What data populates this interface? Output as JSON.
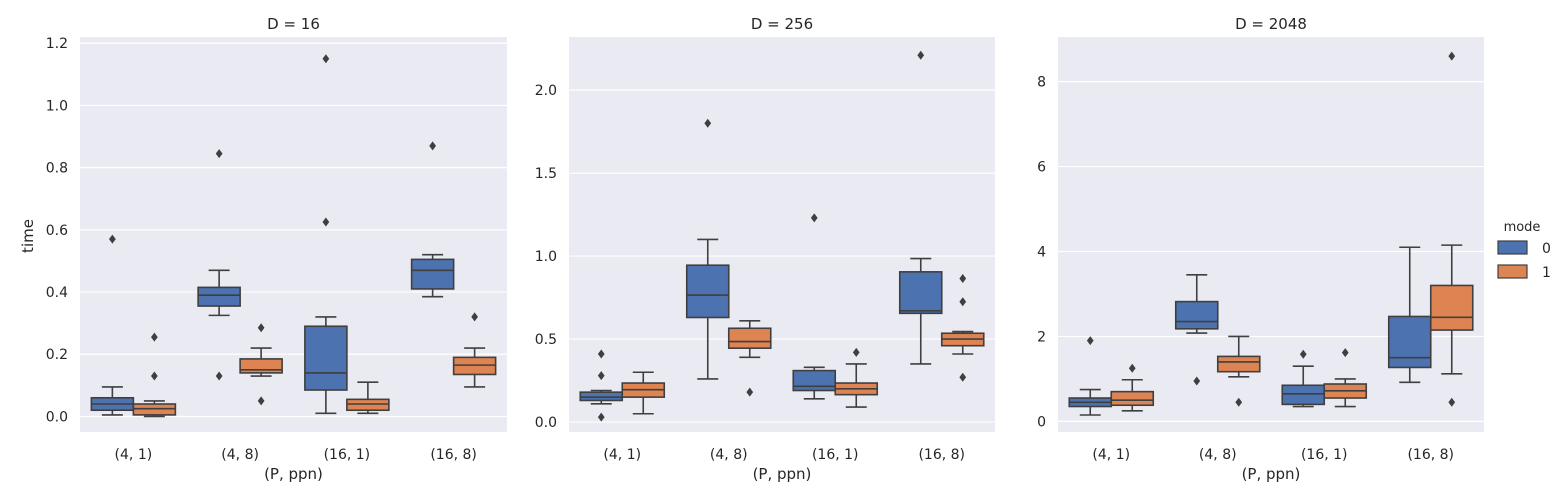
{
  "chart_data": {
    "type": "box",
    "xlabel": "(P, ppn)",
    "ylabel": "time",
    "categories": [
      "(4, 1)",
      "(4, 8)",
      "(16, 1)",
      "(16, 8)"
    ],
    "legend": {
      "title": "mode",
      "placement": "right",
      "entries": [
        {
          "name": "0",
          "color": "#4c72b0"
        },
        {
          "name": "1",
          "color": "#dd8452"
        }
      ]
    },
    "colors": {
      "background": "#eaeaf2",
      "grid": "#ffffff",
      "edge": "#3f3f3f"
    },
    "grid": true,
    "panels": [
      {
        "title": "D = 16",
        "ylim": [
          -0.05,
          1.22
        ],
        "yticks": [
          0.0,
          0.2,
          0.4,
          0.6,
          0.8,
          1.0,
          1.2
        ],
        "yticklabels": [
          "0.0",
          "0.2",
          "0.4",
          "0.6",
          "0.8",
          "1.0",
          "1.2"
        ],
        "series": [
          {
            "name": "0",
            "boxes": [
              {
                "whislo": 0.005,
                "q1": 0.02,
                "med": 0.04,
                "q3": 0.06,
                "whishi": 0.095,
                "fliers": [
                  0.57
                ]
              },
              {
                "whislo": 0.325,
                "q1": 0.355,
                "med": 0.39,
                "q3": 0.415,
                "whishi": 0.47,
                "fliers": [
                  0.13,
                  0.845
                ]
              },
              {
                "whislo": 0.01,
                "q1": 0.085,
                "med": 0.14,
                "q3": 0.29,
                "whishi": 0.32,
                "fliers": [
                  0.625,
                  1.15
                ]
              },
              {
                "whislo": 0.385,
                "q1": 0.41,
                "med": 0.47,
                "q3": 0.505,
                "whishi": 0.52,
                "fliers": [
                  0.87
                ]
              }
            ]
          },
          {
            "name": "1",
            "boxes": [
              {
                "whislo": 0.0,
                "q1": 0.005,
                "med": 0.025,
                "q3": 0.04,
                "whishi": 0.05,
                "fliers": [
                  0.13,
                  0.255
                ]
              },
              {
                "whislo": 0.13,
                "q1": 0.14,
                "med": 0.15,
                "q3": 0.185,
                "whishi": 0.22,
                "fliers": [
                  0.05,
                  0.285
                ]
              },
              {
                "whislo": 0.01,
                "q1": 0.02,
                "med": 0.04,
                "q3": 0.055,
                "whishi": 0.11,
                "fliers": []
              },
              {
                "whislo": 0.095,
                "q1": 0.135,
                "med": 0.165,
                "q3": 0.19,
                "whishi": 0.22,
                "fliers": [
                  0.32
                ]
              }
            ]
          }
        ]
      },
      {
        "title": "D = 256",
        "ylim": [
          -0.06,
          2.32
        ],
        "yticks": [
          0.0,
          0.5,
          1.0,
          1.5,
          2.0
        ],
        "yticklabels": [
          "0.0",
          "0.5",
          "1.0",
          "1.5",
          "2.0"
        ],
        "series": [
          {
            "name": "0",
            "boxes": [
              {
                "whislo": 0.11,
                "q1": 0.13,
                "med": 0.15,
                "q3": 0.18,
                "whishi": 0.19,
                "fliers": [
                  0.03,
                  0.28,
                  0.41
                ]
              },
              {
                "whislo": 0.26,
                "q1": 0.63,
                "med": 0.765,
                "q3": 0.945,
                "whishi": 1.1,
                "fliers": [
                  1.8
                ]
              },
              {
                "whislo": 0.14,
                "q1": 0.19,
                "med": 0.215,
                "q3": 0.31,
                "whishi": 0.33,
                "fliers": [
                  1.23
                ]
              },
              {
                "whislo": 0.35,
                "q1": 0.655,
                "med": 0.67,
                "q3": 0.905,
                "whishi": 0.985,
                "fliers": [
                  2.21
                ]
              }
            ]
          },
          {
            "name": "1",
            "boxes": [
              {
                "whislo": 0.05,
                "q1": 0.15,
                "med": 0.195,
                "q3": 0.235,
                "whishi": 0.3,
                "fliers": []
              },
              {
                "whislo": 0.39,
                "q1": 0.445,
                "med": 0.485,
                "q3": 0.565,
                "whishi": 0.61,
                "fliers": [
                  0.18
                ]
              },
              {
                "whislo": 0.09,
                "q1": 0.165,
                "med": 0.2,
                "q3": 0.235,
                "whishi": 0.35,
                "fliers": [
                  0.42
                ]
              },
              {
                "whislo": 0.41,
                "q1": 0.46,
                "med": 0.5,
                "q3": 0.535,
                "whishi": 0.545,
                "fliers": [
                  0.27,
                  0.725,
                  0.865
                ]
              }
            ]
          }
        ]
      },
      {
        "title": "D = 2048",
        "ylim": [
          -0.25,
          9.05
        ],
        "yticks": [
          0,
          2,
          4,
          6,
          8
        ],
        "yticklabels": [
          "0",
          "2",
          "4",
          "6",
          "8"
        ],
        "series": [
          {
            "name": "0",
            "boxes": [
              {
                "whislo": 0.15,
                "q1": 0.35,
                "med": 0.45,
                "q3": 0.55,
                "whishi": 0.75,
                "fliers": [
                  1.9
                ]
              },
              {
                "whislo": 2.08,
                "q1": 2.18,
                "med": 2.35,
                "q3": 2.82,
                "whishi": 3.45,
                "fliers": [
                  0.95
                ]
              },
              {
                "whislo": 0.35,
                "q1": 0.4,
                "med": 0.65,
                "q3": 0.85,
                "whishi": 1.3,
                "fliers": [
                  1.58
                ]
              },
              {
                "whislo": 0.92,
                "q1": 1.27,
                "med": 1.5,
                "q3": 2.47,
                "whishi": 4.1,
                "fliers": []
              }
            ]
          },
          {
            "name": "1",
            "boxes": [
              {
                "whislo": 0.25,
                "q1": 0.38,
                "med": 0.5,
                "q3": 0.7,
                "whishi": 0.98,
                "fliers": [
                  1.25
                ]
              },
              {
                "whislo": 1.05,
                "q1": 1.17,
                "med": 1.4,
                "q3": 1.53,
                "whishi": 2.0,
                "fliers": [
                  0.45
                ]
              },
              {
                "whislo": 0.35,
                "q1": 0.55,
                "med": 0.72,
                "q3": 0.88,
                "whishi": 1.0,
                "fliers": [
                  1.62
                ]
              },
              {
                "whislo": 1.12,
                "q1": 2.15,
                "med": 2.45,
                "q3": 3.2,
                "whishi": 4.15,
                "fliers": [
                  0.45,
                  8.6
                ]
              }
            ]
          }
        ]
      }
    ]
  }
}
